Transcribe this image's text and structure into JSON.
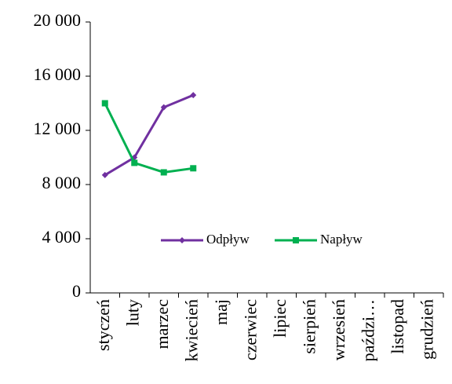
{
  "chart_data": {
    "type": "line",
    "categories": [
      "styczeń",
      "luty",
      "marzec",
      "kwiecień",
      "maj",
      "czerwiec",
      "lipiec",
      "sierpień",
      "wrzesień",
      "paździ…",
      "listopad",
      "grudzień"
    ],
    "series": [
      {
        "name": "Odpływ",
        "color": "#7030a0",
        "marker": "diamond",
        "values": [
          8700,
          10000,
          13700,
          14600,
          null,
          null,
          null,
          null,
          null,
          null,
          null,
          null
        ]
      },
      {
        "name": "Napływ",
        "color": "#00b050",
        "marker": "square",
        "values": [
          14000,
          9600,
          8900,
          9200,
          null,
          null,
          null,
          null,
          null,
          null,
          null,
          null
        ]
      }
    ],
    "ylim": [
      0,
      20000
    ],
    "yticks": [
      0,
      {
        "value": 4000,
        "label": "4 000"
      },
      {
        "value": 8000,
        "label": "8 000"
      },
      {
        "value": 12000,
        "label": "12 000"
      },
      {
        "value": 16000,
        "label": "16 000"
      },
      {
        "value": 20000,
        "label": "20 000"
      }
    ],
    "grid": false
  }
}
